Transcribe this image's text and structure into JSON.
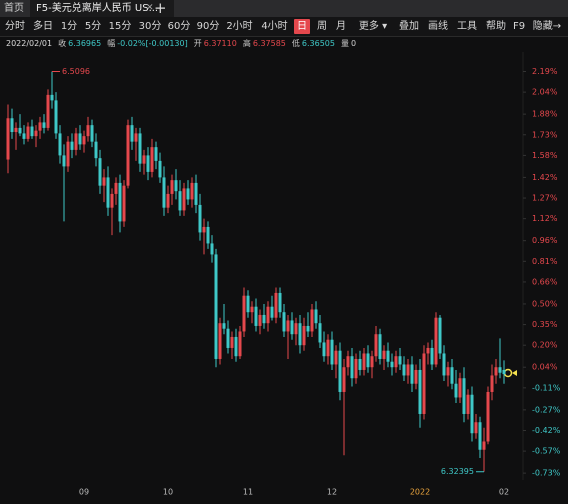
{
  "tabs": {
    "home": "首页",
    "active": "F5-美元兑离岸人民币 US...",
    "add": "+"
  },
  "toolbar": {
    "items": [
      "分时",
      "多日",
      "1分",
      "5分",
      "15分",
      "30分",
      "60分",
      "90分",
      "2小时",
      "4小时",
      "日",
      "周",
      "月",
      "更多 ▾",
      "叠加",
      "画线",
      "工具",
      "帮助",
      "F9",
      "隐藏→"
    ],
    "active": 10,
    "active_color": "#e5484d"
  },
  "info": {
    "date": "2022/02/01",
    "items": [
      {
        "label": "收",
        "value": "6.36965",
        "color": "#3fc8c8"
      },
      {
        "label": "幅",
        "value": "-0.02%[-0.00130]",
        "color": "#3fc8c8"
      },
      {
        "label": "开",
        "value": "6.37110",
        "color": "#e5484d"
      },
      {
        "label": "高",
        "value": "6.37585",
        "color": "#e5484d"
      },
      {
        "label": "低",
        "value": "6.36505",
        "color": "#3fc8c8"
      },
      {
        "label": "量",
        "value": "0",
        "color": "#d0d0d0"
      }
    ]
  },
  "chart_data": {
    "type": "candlestick",
    "up_color": "#e5484d",
    "down_color": "#3fc8c8",
    "year_label_color": "#e8a33c",
    "high_label": "6.5096",
    "low_label": "6.32395",
    "ylim": [
      -0.78,
      2.31
    ],
    "yticks": [
      {
        "value": 2.19,
        "label": "2.19%"
      },
      {
        "value": 2.04,
        "label": "2.04%"
      },
      {
        "value": 1.88,
        "label": "1.88%"
      },
      {
        "value": 1.73,
        "label": "1.73%"
      },
      {
        "value": 1.58,
        "label": "1.58%"
      },
      {
        "value": 1.42,
        "label": "1.42%"
      },
      {
        "value": 1.27,
        "label": "1.27%"
      },
      {
        "value": 1.12,
        "label": "1.12%"
      },
      {
        "value": 0.96,
        "label": "0.96%"
      },
      {
        "value": 0.81,
        "label": "0.81%"
      },
      {
        "value": 0.66,
        "label": "0.66%"
      },
      {
        "value": 0.5,
        "label": "0.50%"
      },
      {
        "value": 0.35,
        "label": "0.35%"
      },
      {
        "value": 0.2,
        "label": "0.20%"
      },
      {
        "value": 0.04,
        "label": "0.04%"
      },
      {
        "value": -0.11,
        "label": "-0.11%"
      },
      {
        "value": -0.27,
        "label": "-0.27%"
      },
      {
        "value": -0.42,
        "label": "-0.42%"
      },
      {
        "value": -0.57,
        "label": "-0.57%"
      },
      {
        "value": -0.73,
        "label": "-0.73%"
      }
    ],
    "categories": [
      null,
      null,
      null,
      null,
      null,
      null,
      null,
      null,
      null,
      null,
      null,
      null,
      null,
      null,
      null,
      null,
      null,
      null,
      null,
      "09",
      null,
      null,
      null,
      null,
      null,
      null,
      null,
      null,
      null,
      null,
      null,
      null,
      null,
      null,
      null,
      null,
      null,
      null,
      null,
      null,
      "10",
      null,
      null,
      null,
      null,
      null,
      null,
      null,
      null,
      null,
      null,
      null,
      null,
      null,
      null,
      null,
      null,
      null,
      null,
      null,
      "11",
      null,
      null,
      null,
      null,
      null,
      null,
      null,
      null,
      null,
      null,
      null,
      null,
      null,
      null,
      null,
      null,
      null,
      null,
      null,
      null,
      "12",
      null,
      null,
      null,
      null,
      null,
      null,
      null,
      null,
      null,
      null,
      null,
      null,
      null,
      null,
      null,
      null,
      null,
      null,
      null,
      null,
      null,
      "2022",
      null,
      null,
      null,
      null,
      null,
      null,
      null,
      null,
      null,
      null,
      null,
      null,
      null,
      null,
      null,
      null,
      null,
      null,
      null,
      null,
      "02"
    ],
    "candles": [
      [
        1.55,
        1.95,
        1.45,
        1.85
      ],
      [
        1.85,
        1.92,
        1.7,
        1.75
      ],
      [
        1.75,
        1.82,
        1.62,
        1.78
      ],
      [
        1.78,
        1.88,
        1.72,
        1.74
      ],
      [
        1.74,
        1.8,
        1.66,
        1.7
      ],
      [
        1.7,
        1.82,
        1.68,
        1.79
      ],
      [
        1.79,
        1.84,
        1.7,
        1.72
      ],
      [
        1.72,
        1.8,
        1.64,
        1.76
      ],
      [
        1.76,
        1.86,
        1.7,
        1.82
      ],
      [
        1.82,
        1.88,
        1.74,
        1.78
      ],
      [
        1.78,
        2.06,
        1.76,
        2.02
      ],
      [
        2.02,
        2.19,
        1.92,
        1.98
      ],
      [
        1.98,
        2.04,
        1.7,
        1.74
      ],
      [
        1.74,
        1.8,
        1.52,
        1.58
      ],
      [
        1.58,
        1.66,
        1.1,
        1.5
      ],
      [
        1.5,
        1.72,
        1.46,
        1.68
      ],
      [
        1.68,
        1.74,
        1.56,
        1.62
      ],
      [
        1.62,
        1.78,
        1.58,
        1.74
      ],
      [
        1.74,
        1.8,
        1.62,
        1.66
      ],
      [
        1.66,
        1.76,
        1.6,
        1.72
      ],
      [
        1.72,
        1.86,
        1.68,
        1.8
      ],
      [
        1.8,
        1.84,
        1.64,
        1.68
      ],
      [
        1.68,
        1.74,
        1.5,
        1.56
      ],
      [
        1.56,
        1.62,
        1.3,
        1.36
      ],
      [
        1.36,
        1.48,
        1.24,
        1.42
      ],
      [
        1.42,
        1.5,
        1.14,
        1.2
      ],
      [
        1.2,
        1.34,
        1.0,
        1.3
      ],
      [
        1.3,
        1.42,
        1.22,
        1.38
      ],
      [
        1.38,
        1.44,
        1.02,
        1.1
      ],
      [
        1.1,
        1.4,
        1.06,
        1.36
      ],
      [
        1.36,
        1.84,
        1.34,
        1.8
      ],
      [
        1.8,
        1.86,
        1.62,
        1.68
      ],
      [
        1.68,
        1.78,
        1.54,
        1.74
      ],
      [
        1.74,
        1.78,
        1.46,
        1.52
      ],
      [
        1.52,
        1.62,
        1.44,
        1.58
      ],
      [
        1.58,
        1.64,
        1.4,
        1.46
      ],
      [
        1.46,
        1.7,
        1.42,
        1.64
      ],
      [
        1.64,
        1.68,
        1.48,
        1.54
      ],
      [
        1.54,
        1.6,
        1.38,
        1.42
      ],
      [
        1.42,
        1.5,
        1.14,
        1.2
      ],
      [
        1.2,
        1.36,
        1.16,
        1.3
      ],
      [
        1.3,
        1.44,
        1.22,
        1.4
      ],
      [
        1.4,
        1.48,
        1.26,
        1.32
      ],
      [
        1.32,
        1.4,
        1.14,
        1.18
      ],
      [
        1.18,
        1.38,
        1.14,
        1.34
      ],
      [
        1.34,
        1.4,
        1.22,
        1.26
      ],
      [
        1.26,
        1.42,
        1.2,
        1.38
      ],
      [
        1.38,
        1.44,
        1.16,
        1.22
      ],
      [
        1.22,
        1.3,
        0.96,
        1.02
      ],
      [
        1.02,
        1.12,
        0.86,
        1.06
      ],
      [
        1.06,
        1.1,
        0.9,
        0.94
      ],
      [
        0.94,
        1.0,
        0.8,
        0.86
      ],
      [
        0.86,
        0.9,
        0.04,
        0.1
      ],
      [
        0.1,
        0.4,
        0.06,
        0.36
      ],
      [
        0.36,
        0.5,
        0.28,
        0.32
      ],
      [
        0.32,
        0.38,
        0.14,
        0.18
      ],
      [
        0.18,
        0.3,
        0.1,
        0.26
      ],
      [
        0.26,
        0.32,
        0.08,
        0.12
      ],
      [
        0.12,
        0.34,
        0.1,
        0.3
      ],
      [
        0.3,
        0.62,
        0.26,
        0.56
      ],
      [
        0.56,
        0.6,
        0.4,
        0.44
      ],
      [
        0.44,
        0.52,
        0.36,
        0.48
      ],
      [
        0.48,
        0.54,
        0.3,
        0.34
      ],
      [
        0.34,
        0.46,
        0.28,
        0.42
      ],
      [
        0.42,
        0.5,
        0.32,
        0.36
      ],
      [
        0.36,
        0.52,
        0.3,
        0.48
      ],
      [
        0.48,
        0.56,
        0.38,
        0.4
      ],
      [
        0.4,
        0.62,
        0.36,
        0.58
      ],
      [
        0.58,
        0.62,
        0.4,
        0.44
      ],
      [
        0.44,
        0.5,
        0.26,
        0.3
      ],
      [
        0.3,
        0.42,
        0.1,
        0.38
      ],
      [
        0.38,
        0.44,
        0.24,
        0.28
      ],
      [
        0.28,
        0.4,
        0.2,
        0.36
      ],
      [
        0.36,
        0.42,
        0.14,
        0.2
      ],
      [
        0.2,
        0.4,
        0.16,
        0.34
      ],
      [
        0.34,
        0.44,
        0.26,
        0.3
      ],
      [
        0.3,
        0.5,
        0.26,
        0.46
      ],
      [
        0.46,
        0.52,
        0.32,
        0.36
      ],
      [
        0.36,
        0.42,
        0.18,
        0.22
      ],
      [
        0.22,
        0.3,
        0.08,
        0.12
      ],
      [
        0.12,
        0.28,
        0.06,
        0.24
      ],
      [
        0.24,
        0.3,
        0.02,
        0.06
      ],
      [
        0.06,
        0.2,
        -0.04,
        0.16
      ],
      [
        0.16,
        0.22,
        -0.2,
        -0.14
      ],
      [
        -0.14,
        0.1,
        -0.6,
        0.04
      ],
      [
        0.04,
        0.16,
        -0.02,
        0.12
      ],
      [
        0.12,
        0.18,
        -0.1,
        -0.04
      ],
      [
        -0.04,
        0.14,
        -0.08,
        0.1
      ],
      [
        0.1,
        0.16,
        -0.02,
        0.02
      ],
      [
        0.02,
        0.18,
        -0.02,
        0.14
      ],
      [
        0.14,
        0.2,
        0.0,
        0.04
      ],
      [
        0.04,
        0.16,
        -0.04,
        0.12
      ],
      [
        0.12,
        0.34,
        0.08,
        0.28
      ],
      [
        0.28,
        0.32,
        0.06,
        0.1
      ],
      [
        0.1,
        0.2,
        0.02,
        0.16
      ],
      [
        0.16,
        0.22,
        0.04,
        0.08
      ],
      [
        0.08,
        0.14,
        -0.02,
        0.04
      ],
      [
        0.04,
        0.16,
        0.0,
        0.12
      ],
      [
        0.12,
        0.18,
        0.02,
        0.06
      ],
      [
        0.06,
        0.12,
        -0.06,
        -0.02
      ],
      [
        -0.02,
        0.1,
        -0.08,
        0.06
      ],
      [
        0.06,
        0.12,
        -0.14,
        -0.08
      ],
      [
        -0.08,
        0.06,
        -0.12,
        0.02
      ],
      [
        0.02,
        0.1,
        -0.4,
        -0.3
      ],
      [
        -0.3,
        0.2,
        -0.34,
        0.14
      ],
      [
        0.14,
        0.22,
        0.06,
        0.18
      ],
      [
        0.18,
        0.24,
        0.02,
        0.06
      ],
      [
        0.06,
        0.44,
        0.04,
        0.4
      ],
      [
        0.4,
        0.42,
        0.1,
        0.14
      ],
      [
        0.14,
        0.2,
        -0.06,
        -0.02
      ],
      [
        -0.02,
        0.08,
        -0.1,
        0.04
      ],
      [
        0.04,
        0.1,
        -0.12,
        -0.08
      ],
      [
        -0.08,
        0.02,
        -0.22,
        -0.18
      ],
      [
        -0.18,
        0.0,
        -0.22,
        -0.04
      ],
      [
        -0.04,
        0.04,
        -0.36,
        -0.3
      ],
      [
        -0.3,
        -0.12,
        -0.34,
        -0.16
      ],
      [
        -0.16,
        -0.1,
        -0.5,
        -0.44
      ],
      [
        -0.44,
        -0.3,
        -0.48,
        -0.36
      ],
      [
        -0.36,
        -0.32,
        -0.62,
        -0.56
      ],
      [
        -0.56,
        -0.4,
        -0.72,
        -0.5
      ],
      [
        -0.5,
        -0.1,
        -0.52,
        -0.14
      ],
      [
        -0.14,
        0.06,
        -0.2,
        -0.02
      ],
      [
        -0.02,
        0.1,
        -0.08,
        0.04
      ],
      [
        0.04,
        0.25,
        -0.04,
        0.0
      ],
      [
        0.02,
        0.09,
        -0.08,
        -0.01
      ]
    ]
  }
}
